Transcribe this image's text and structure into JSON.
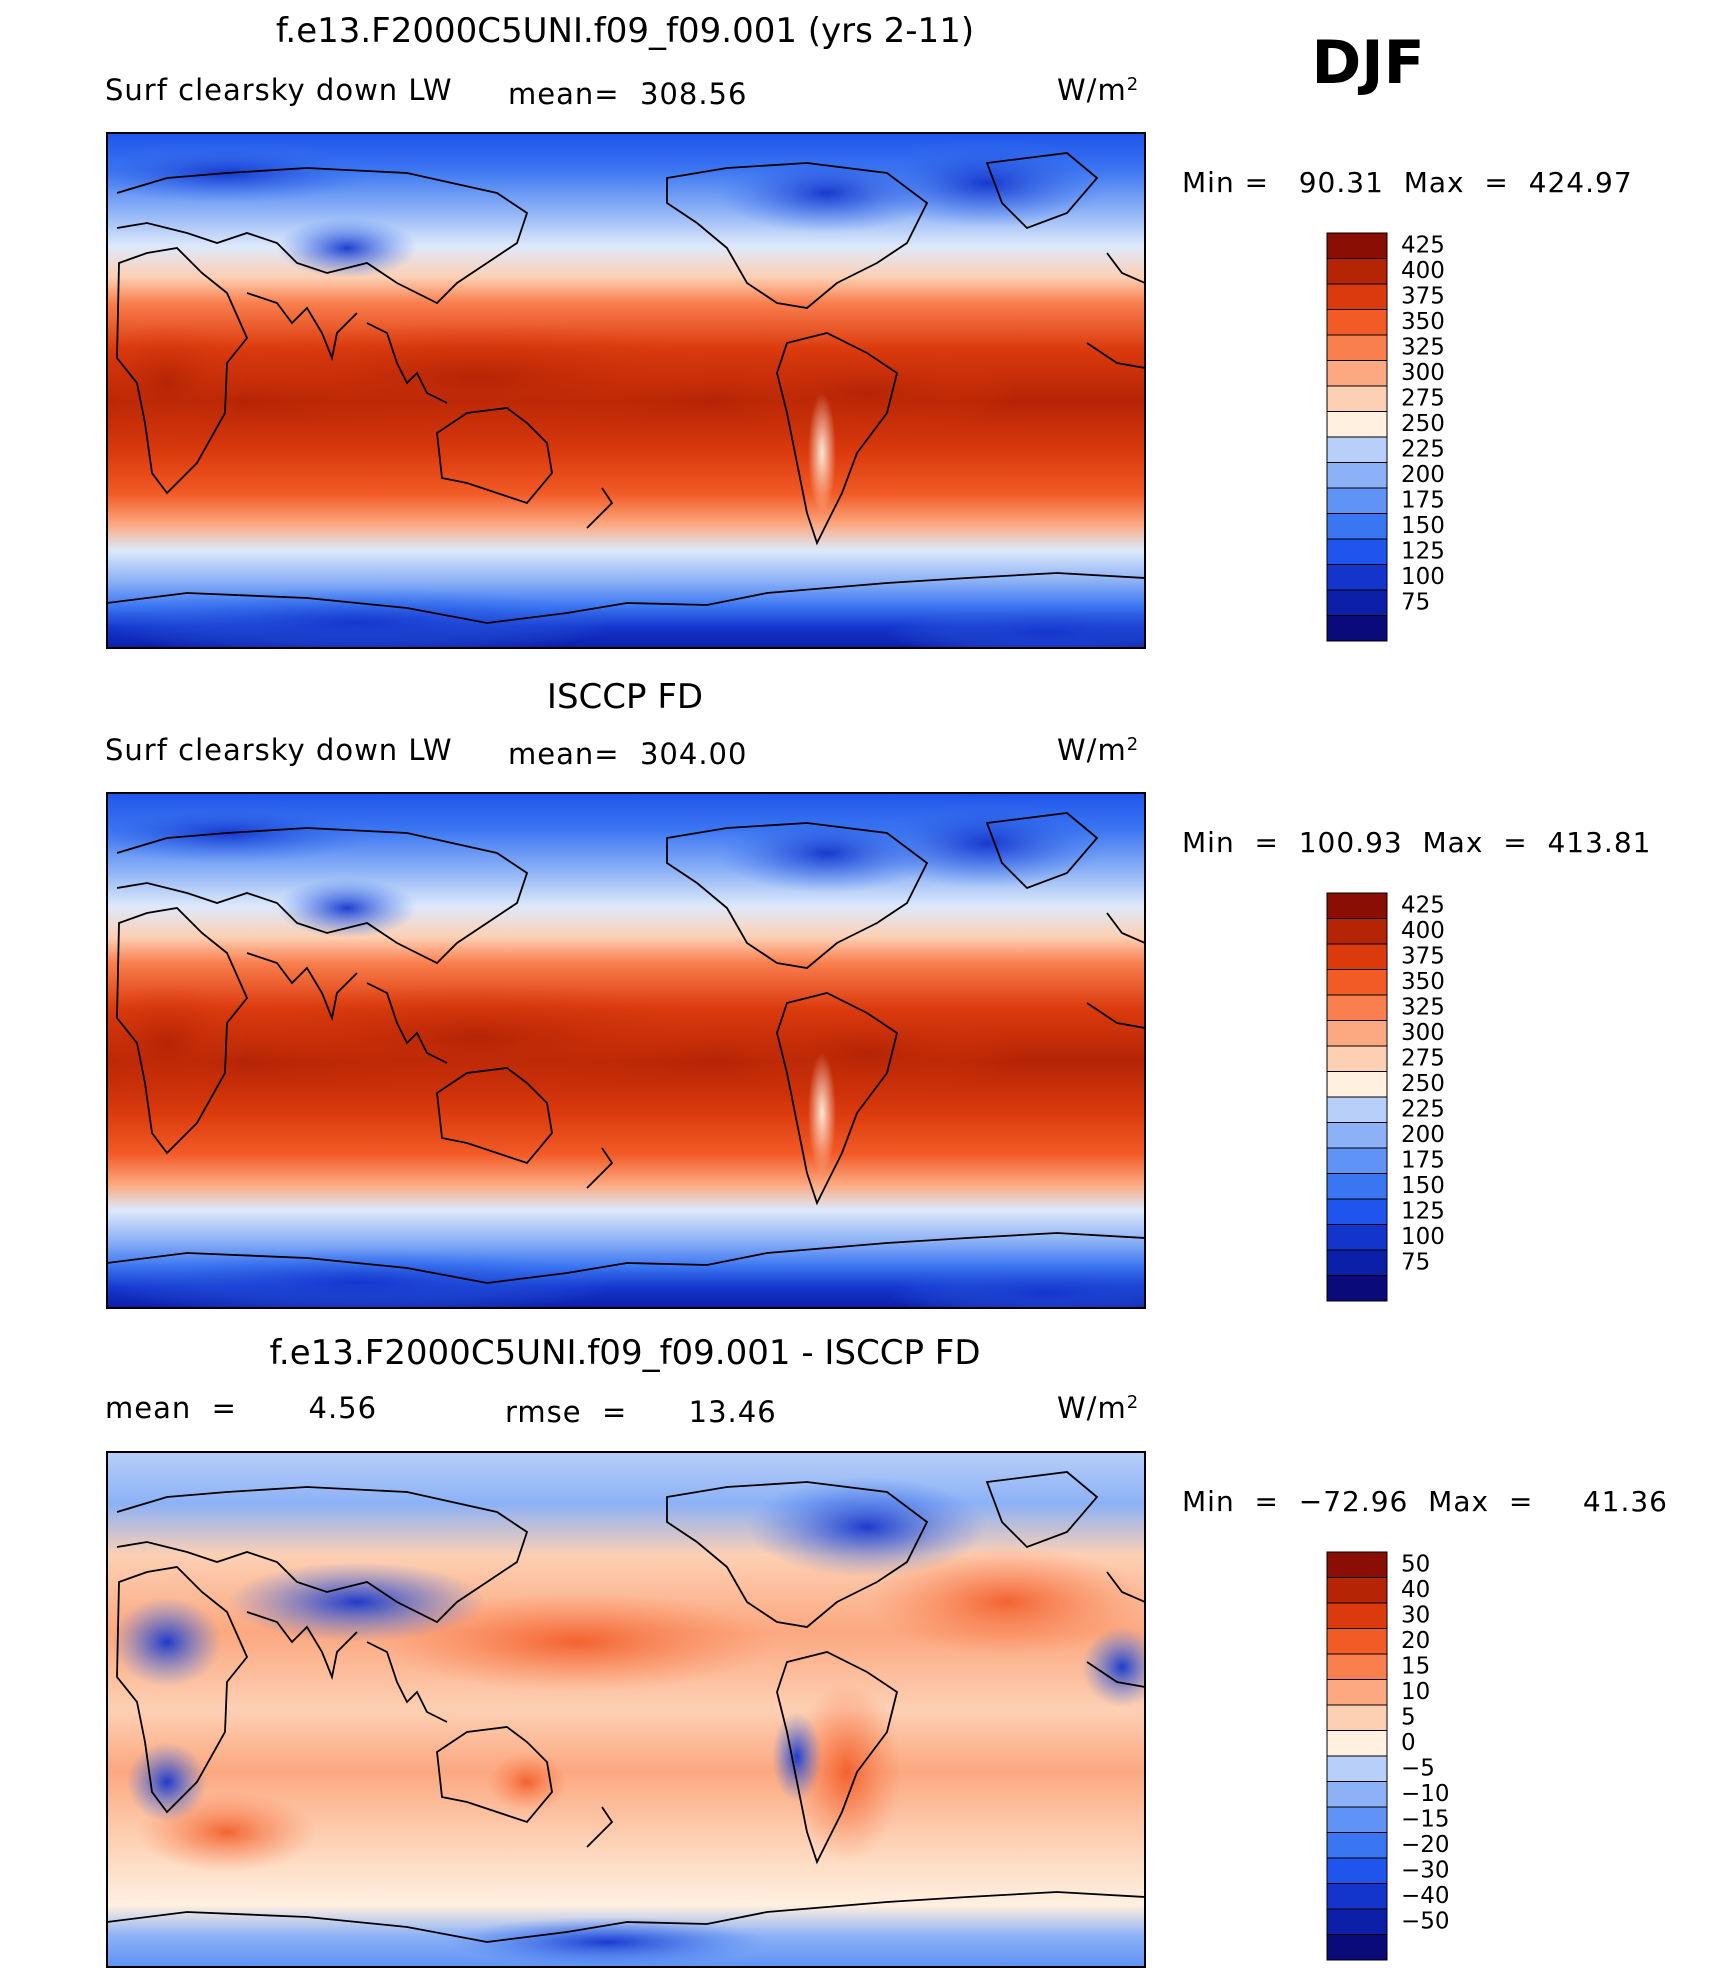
{
  "figure": {
    "season": "DJF",
    "contour_style": "filled contour maps with coastlines (world map, 0-360 longitude, Pacific-centered)"
  },
  "panels": [
    {
      "title": "f.e13.F2000C5UNI.f09_f09.001 (yrs 2-11)",
      "left_label": "Surf clearsky down LW",
      "center_label": "mean=  308.56",
      "units": "W/m",
      "units_sup": "2",
      "minmax": "Min =   90.31  Max  =  424.97",
      "kind": "absolute",
      "colorbar": {
        "labels": [
          "425",
          "400",
          "375",
          "350",
          "325",
          "300",
          "275",
          "250",
          "225",
          "200",
          "175",
          "150",
          "125",
          "100",
          "75"
        ]
      }
    },
    {
      "title": "ISCCP FD",
      "left_label": "Surf clearsky down LW",
      "center_label": "mean=  304.00",
      "units": "W/m",
      "units_sup": "2",
      "minmax": "Min  =  100.93  Max  =  413.81",
      "kind": "absolute",
      "colorbar": {
        "labels": [
          "425",
          "400",
          "375",
          "350",
          "325",
          "300",
          "275",
          "250",
          "225",
          "200",
          "175",
          "150",
          "125",
          "100",
          "75"
        ]
      }
    },
    {
      "title": "f.e13.F2000C5UNI.f09_f09.001 - ISCCP FD",
      "left_label": "mean  =       4.56",
      "center_label": "rmse  =      13.46",
      "units": "W/m",
      "units_sup": "2",
      "minmax": "Min  =  −72.96  Max  =     41.36",
      "kind": "difference",
      "colorbar": {
        "labels": [
          "50",
          "40",
          "30",
          "20",
          "15",
          "10",
          "5",
          "0",
          "−5",
          "−10",
          "−15",
          "−20",
          "−30",
          "−40",
          "−50"
        ]
      }
    }
  ],
  "palettes": {
    "absolute": [
      "#0a0a7a",
      "#0c1fa8",
      "#1435cc",
      "#1f55ec",
      "#3a75f2",
      "#5f93f5",
      "#8cb1f6",
      "#b8cff9",
      "#dde9fb",
      "#fff0e0",
      "#fdd0b4",
      "#fca880",
      "#fa7f4e",
      "#f25a26",
      "#db3a0d",
      "#b52405",
      "#8a0e03"
    ],
    "difference": [
      "#0a0a7a",
      "#0c1fa8",
      "#1435cc",
      "#1f55ec",
      "#3a75f2",
      "#5f93f5",
      "#8cb1f6",
      "#b8cff9",
      "#dde9fb",
      "#fff0e0",
      "#fdd0b4",
      "#fca880",
      "#fa7f4e",
      "#f25a26",
      "#db3a0d",
      "#b52405",
      "#8a0e03"
    ]
  }
}
